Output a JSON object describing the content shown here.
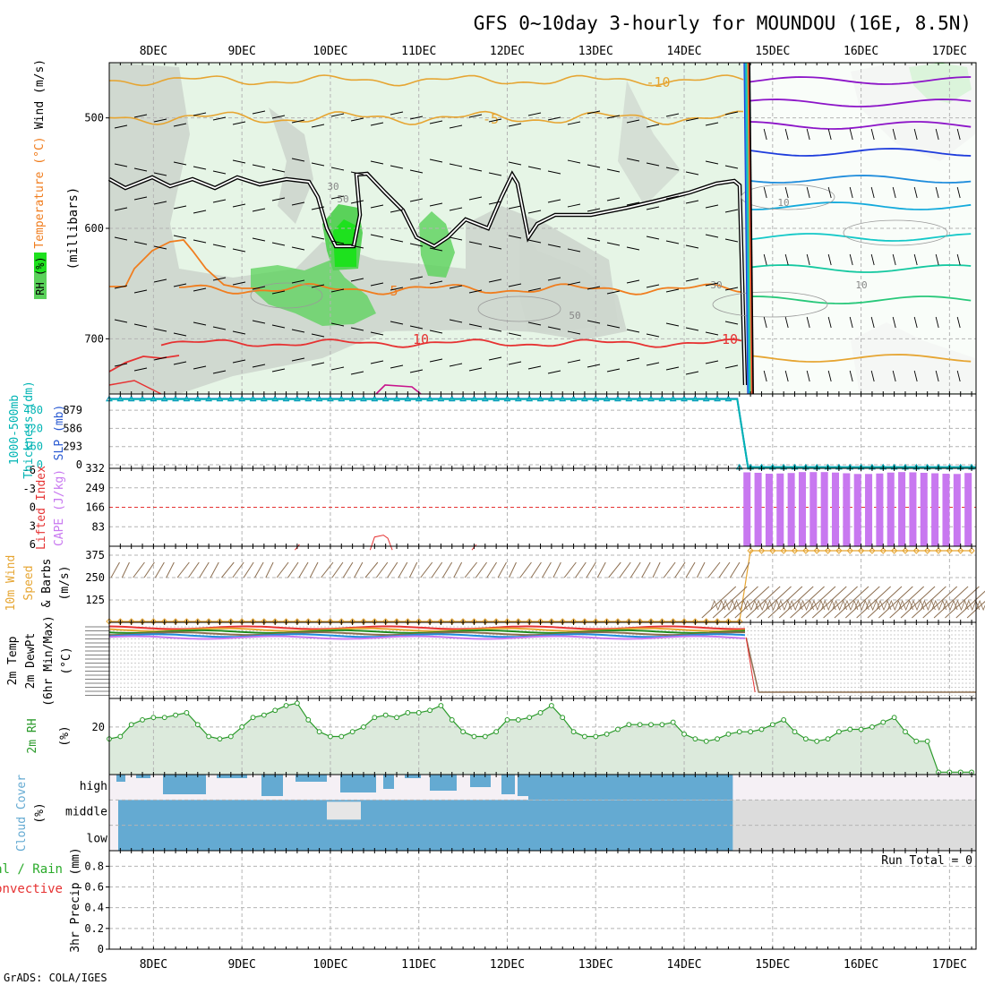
{
  "title": "GFS 0~10day 3-hourly for MOUNDOU (16E, 8.5N)",
  "credit": "GrADS: COLA/IGES",
  "colors": {
    "grid": "#b4b4b4",
    "frame": "#000000",
    "rh_light": "#e6f5e6",
    "rh_gray": "#cdd6cd",
    "rh_green": "#5ad25a",
    "rh_bright": "#1ee11e",
    "temp_orange": "#f07d1e",
    "temp_gold": "#e6a532",
    "temp_red": "#e63232",
    "thickness": "#00b4b4",
    "slp": "#2a5ad2",
    "cape": "#c878f0",
    "lifted": "#e63232",
    "wind_speed": "#e6a532",
    "barb": "#8c6e50",
    "rh2m": "#2a9a2a",
    "rh2m_fill": "#dceadc",
    "cloud": "#64aad2",
    "cloud_empty": "#f5f0f5",
    "cloud_gray": "#dcdcdc",
    "precip_label_total": "#2aaa2a",
    "precip_label_conv": "#e63232",
    "lbl_cyan": "#00b4b4",
    "lbl_blue": "#2a5ad2",
    "lbl_red": "#e63232",
    "lbl_purple": "#c878f0",
    "lbl_orange": "#e6a532",
    "lbl_green": "#2a9a2a",
    "lbl_cloud": "#64aad2"
  },
  "x_days": [
    "8DEC",
    "9DEC",
    "10DEC",
    "11DEC",
    "12DEC",
    "13DEC",
    "14DEC",
    "15DEC",
    "16DEC",
    "17DEC"
  ],
  "panel_labels": {
    "upper": [
      "RH (%)",
      "Temperature (°C)",
      "Wind (m/s)",
      "(millibars)"
    ],
    "thickness": [
      "1000-500mb",
      "Thickness (dm)",
      "SLP (mb)"
    ],
    "cape": [
      "Lifted Index",
      "CAPE (J/kg)"
    ],
    "wind10": [
      "10m Wind",
      "Speed",
      "& Barbs",
      "(m/s)"
    ],
    "temp2m": [
      "2m Temp",
      "2m DewPt",
      "(6hr Min/Max)",
      "(°C)"
    ],
    "rh2m": [
      "2m RH",
      "(%)"
    ],
    "cloud": [
      "Cloud Cover",
      "(%)"
    ],
    "precip": [
      "Total / Rain",
      "Convective",
      "3hr Precip (mm)"
    ]
  },
  "chart_data": [
    {
      "type": "contour",
      "title": "Upper air: RH (%), Temperature (°C), Wind (m/s)",
      "ylabel": "millibars",
      "y_ticks": [
        500,
        600,
        700
      ],
      "ylim": [
        750,
        450
      ],
      "contour_labels": [
        "-10",
        "-5",
        "5",
        "10",
        "10",
        "30",
        "50",
        "50",
        "30",
        "10",
        "10"
      ],
      "temperature_series": [
        {
          "name": "-10",
          "level_mb": 465
        },
        {
          "name": "-5",
          "level_mb": 500
        },
        {
          "name": "5",
          "level_mb": 650
        },
        {
          "name": "10",
          "level_mb": 705
        }
      ],
      "undefined_after_x": 14.7
    },
    {
      "type": "line",
      "title": "1000-500mb Thickness (dm) / SLP (mb)",
      "left_ticks": [
        "0",
        "160",
        "320",
        "480"
      ],
      "right_ticks": [
        "0",
        "293",
        "586",
        "879"
      ],
      "ylim": [
        0,
        1000
      ],
      "series": [
        {
          "name": "SLP",
          "x_start": 7.5,
          "x_end": 14.6,
          "value_before": 935,
          "value_after": 15
        },
        {
          "name": "Thickness",
          "x_start": 7.5,
          "x_end": 14.6,
          "value_before": 930,
          "value_after": 15
        }
      ]
    },
    {
      "type": "bar",
      "title": "Lifted Index / CAPE (J/kg)",
      "li_ticks": [
        "-6",
        "-3",
        "0",
        "3",
        "6"
      ],
      "cape_ticks": [
        "83",
        "166",
        "249",
        "332"
      ],
      "cape_ylim": [
        0,
        332
      ],
      "cape_values": [
        315,
        313,
        309,
        310,
        312,
        316,
        316,
        316,
        314,
        311,
        308,
        308,
        310,
        314,
        316,
        315,
        313,
        311,
        309,
        308,
        312
      ],
      "cape_x_start": 14.67,
      "cape_x_step": 0.125,
      "lifted_index_points": [
        [
          9.6,
          6.9
        ],
        [
          9.65,
          6.0
        ],
        [
          10.45,
          6.9
        ],
        [
          10.5,
          4.8
        ],
        [
          10.6,
          4.5
        ],
        [
          10.65,
          5.0
        ],
        [
          10.7,
          6.9
        ],
        [
          11.6,
          6.9
        ],
        [
          11.65,
          6.0
        ]
      ]
    },
    {
      "type": "line",
      "title": "10m Wind Speed & Barbs (m/s)",
      "y_ticks": [
        "125",
        "250",
        "375"
      ],
      "ylim": [
        0,
        425
      ],
      "speed_before": 5,
      "speed_after": 400,
      "x_step": 0.125,
      "x_start": 7.5,
      "switch_x": 14.7
    },
    {
      "type": "line",
      "title": "2m Temp / 2m DewPt (6hr Min/Max) (°C)",
      "undefined_after_x": 14.7
    },
    {
      "type": "area",
      "title": "2m RH (%)",
      "y_ticks": [
        "20"
      ],
      "ylim": [
        0,
        32
      ],
      "x_start": 7.5,
      "x_step": 0.125,
      "values": [
        15,
        16,
        21,
        23,
        24,
        24,
        25,
        26,
        21,
        16,
        15,
        16,
        20,
        24,
        25,
        27,
        29,
        30,
        23,
        18,
        16,
        16,
        18,
        20,
        24,
        25,
        24,
        26,
        26,
        27,
        29,
        23,
        18,
        16,
        16,
        18,
        23,
        23,
        24,
        26,
        29,
        24,
        18,
        16,
        16,
        17,
        19,
        21,
        21,
        21,
        21,
        22,
        17,
        15,
        14,
        15,
        17,
        18,
        18,
        19,
        21,
        23,
        18,
        15,
        14,
        15,
        18,
        19,
        19,
        20,
        22,
        24,
        18,
        14,
        14,
        1,
        1,
        1,
        1,
        1,
        1,
        1,
        1,
        1,
        1,
        1,
        1,
        1,
        1,
        1,
        1,
        1,
        1,
        1,
        1,
        1,
        1,
        1
      ]
    },
    {
      "type": "bar",
      "title": "Cloud Cover (%)",
      "categories": [
        "high",
        "middle",
        "low"
      ],
      "ylim": [
        0,
        100
      ]
    },
    {
      "type": "bar",
      "title": "3hr Precip (mm)",
      "y_ticks": [
        "0",
        "0.2",
        "0.4",
        "0.6",
        "0.8"
      ],
      "ylim": [
        0,
        0.95
      ],
      "run_total_label": "Run Total = 0",
      "values": []
    }
  ]
}
